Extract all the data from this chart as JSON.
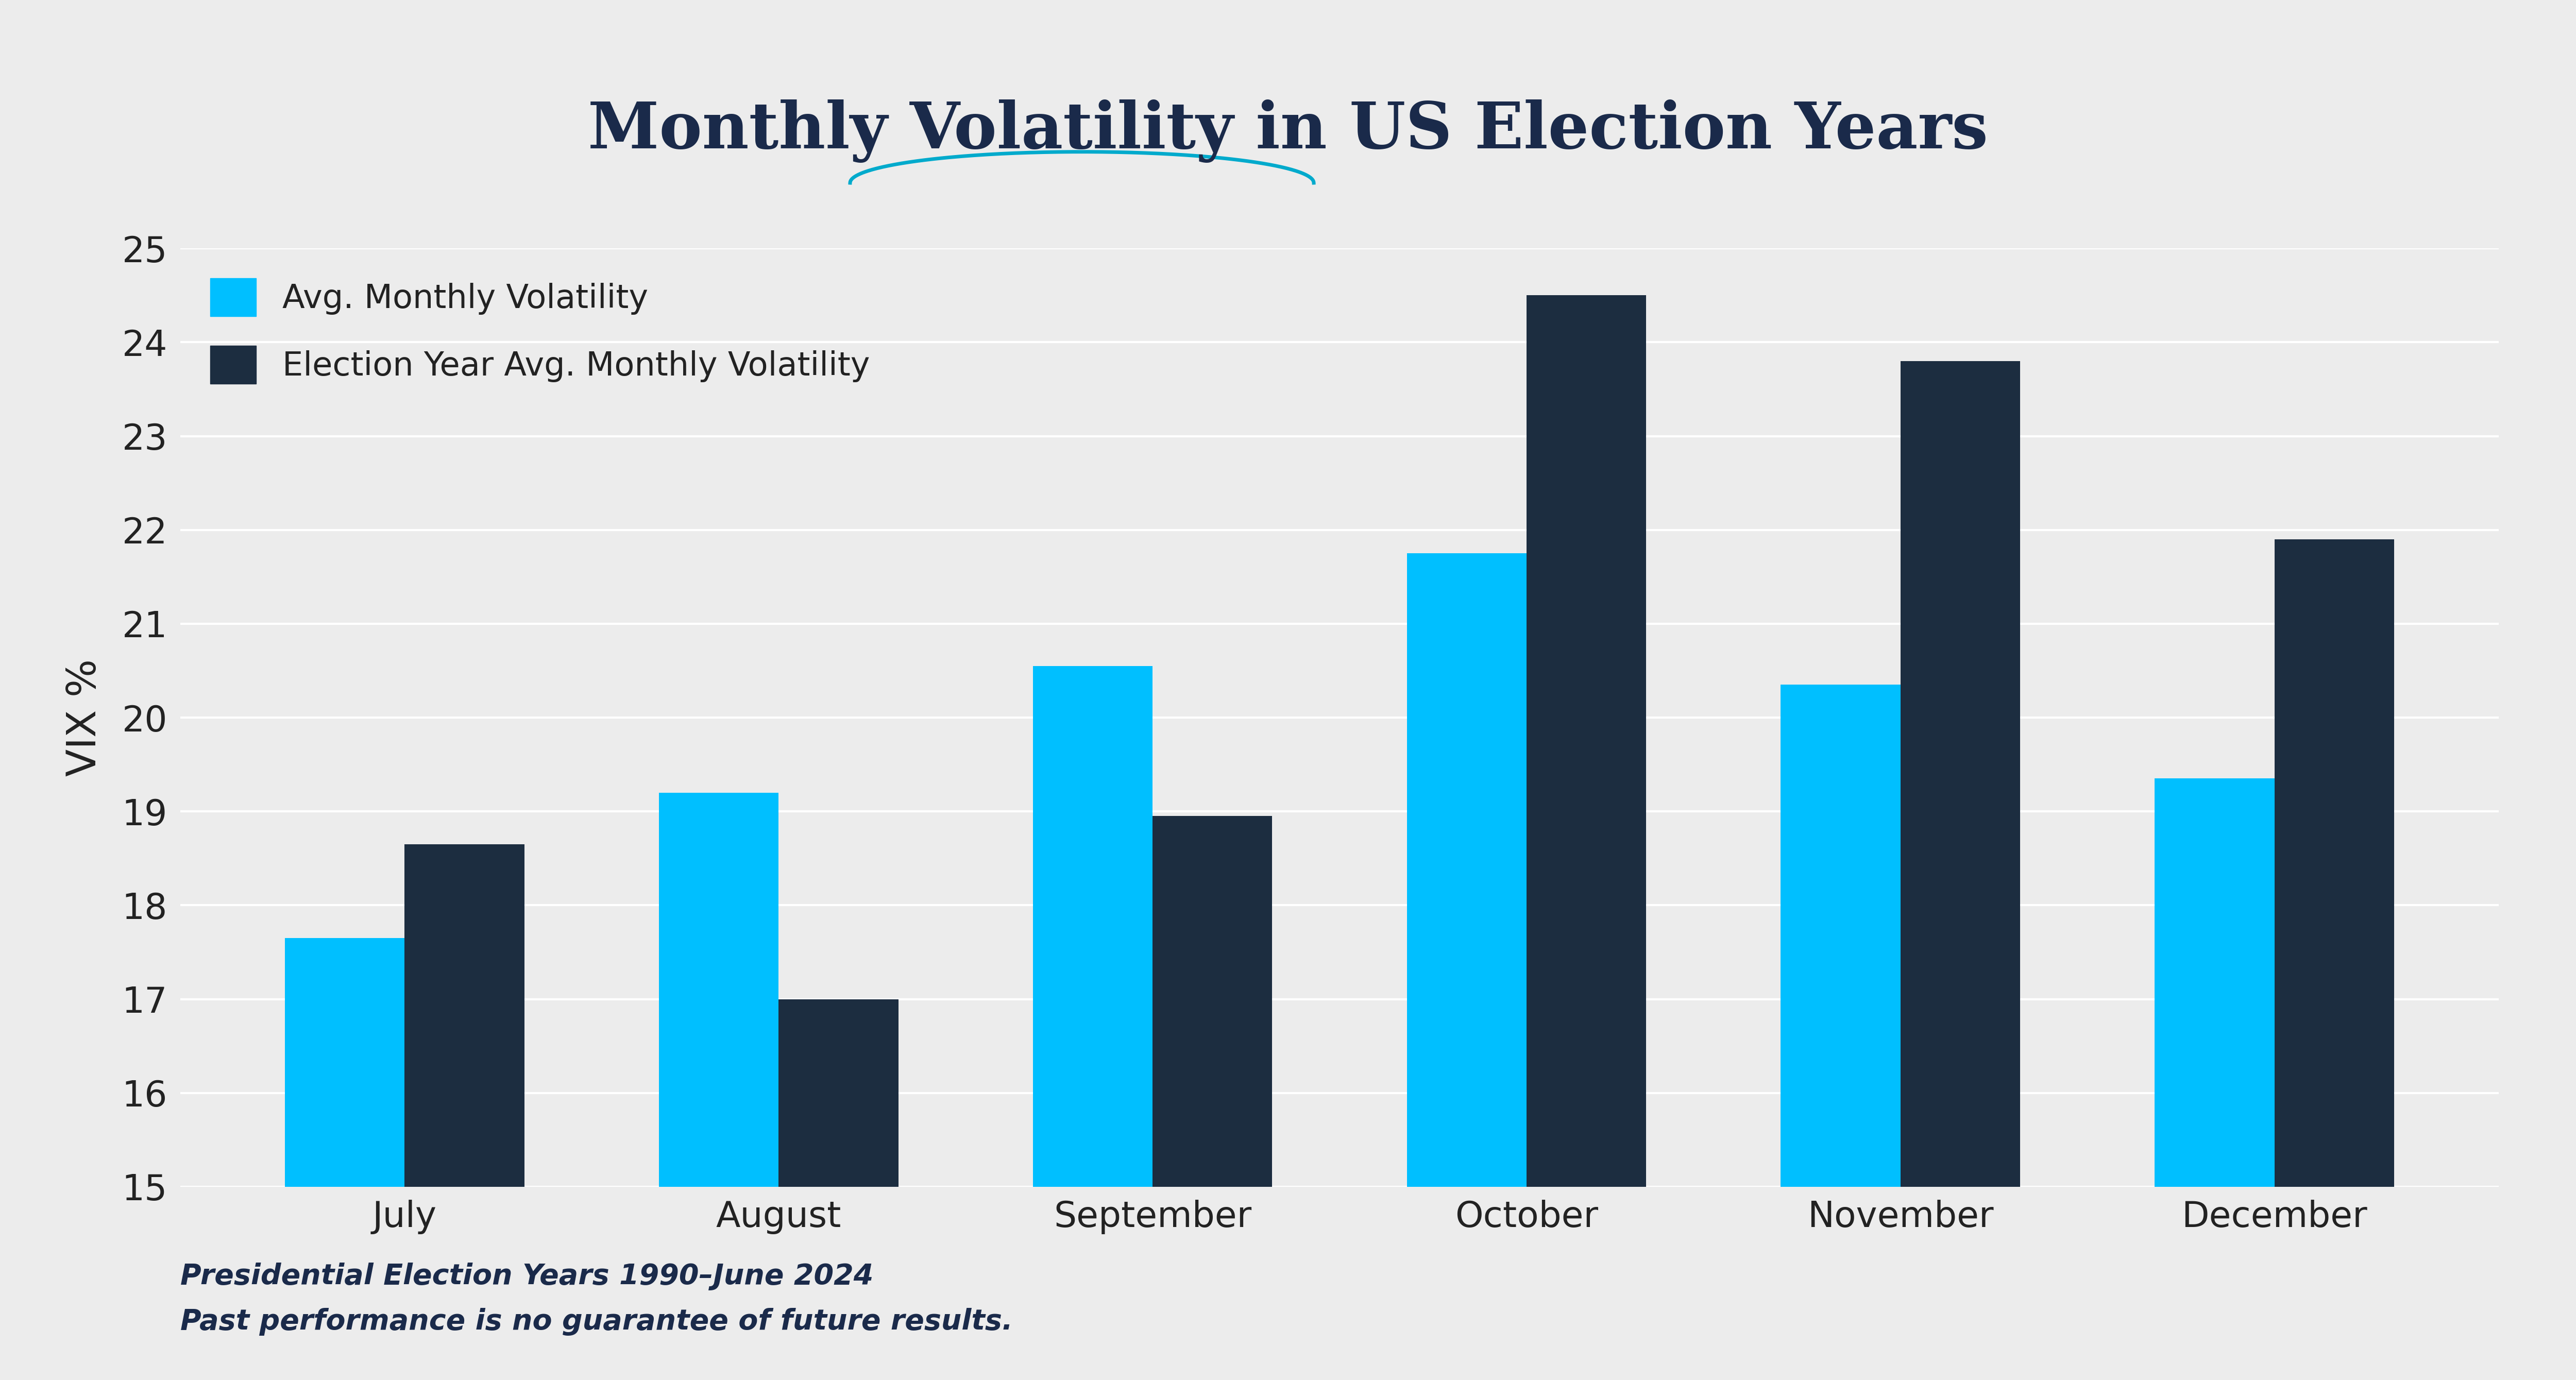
{
  "title": "Monthly Volatility in US Election Years",
  "title_color": "#1a2a4a",
  "title_fontsize": 90,
  "subtitle_arc_color": "#00aacc",
  "ylabel": "VIX %",
  "ylabel_fontsize": 56,
  "categories": [
    "July",
    "August",
    "September",
    "October",
    "November",
    "December"
  ],
  "avg_monthly": [
    17.65,
    19.2,
    20.55,
    21.75,
    20.35,
    19.35
  ],
  "election_year_avg": [
    18.65,
    17.0,
    18.95,
    24.5,
    23.8,
    21.9
  ],
  "bar_color_avg": "#00bfff",
  "bar_color_election": "#1c2d40",
  "ylim_min": 15,
  "ylim_max": 25,
  "yticks": [
    15,
    16,
    17,
    18,
    19,
    20,
    21,
    22,
    23,
    24,
    25
  ],
  "background_color": "#ececec",
  "grid_color": "#ffffff",
  "legend_label_avg": "Avg. Monthly Volatility",
  "legend_label_election": "Election Year Avg. Monthly Volatility",
  "legend_fontsize": 46,
  "tick_fontsize": 50,
  "xtick_fontsize": 50,
  "footnote_line1": "Presidential Election Years 1990–June 2024",
  "footnote_line2": "Past performance is no guarantee of future results.",
  "footnote_fontsize": 40,
  "bar_width": 0.32
}
